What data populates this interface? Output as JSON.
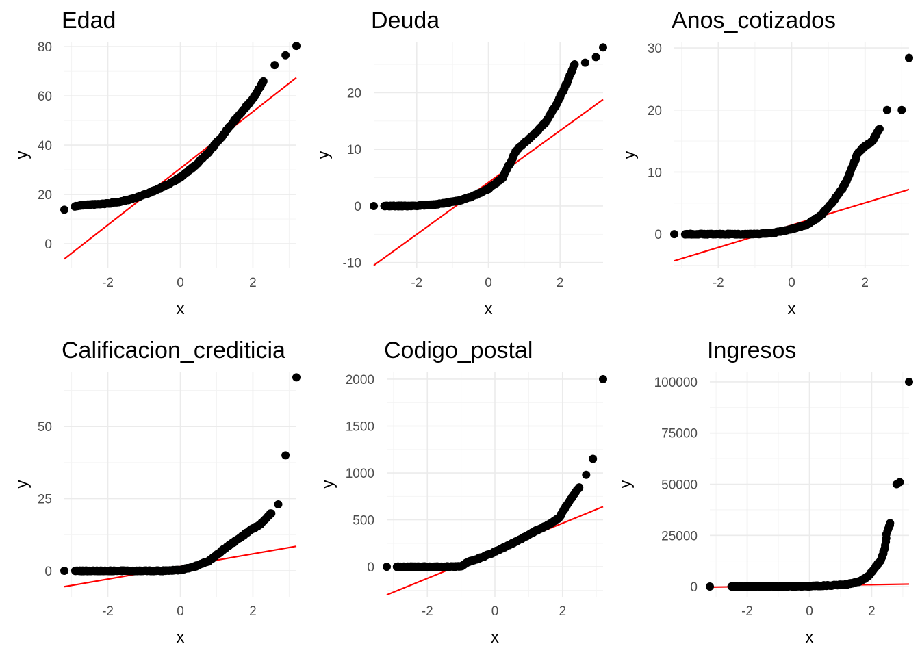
{
  "chart_data": [
    {
      "type": "scatter",
      "title": "Edad",
      "xlabel": "x",
      "ylabel": "y",
      "xlim": [
        -3.2,
        3.2
      ],
      "ylim": [
        -10,
        82
      ],
      "xticks": [
        -2,
        0,
        2
      ],
      "yticks": [
        0,
        20,
        40,
        60,
        80
      ],
      "ytick_labels": [
        "0",
        "20",
        "40",
        "60",
        "80"
      ],
      "grid": true,
      "curve": [
        [
          -3.2,
          13.8
        ],
        [
          -2.9,
          15.2
        ],
        [
          -2.6,
          15.8
        ],
        [
          -2.3,
          16
        ],
        [
          -2,
          16.3
        ],
        [
          -1.6,
          17.2
        ],
        [
          -1.2,
          18.8
        ],
        [
          -0.8,
          21
        ],
        [
          -0.4,
          23.6
        ],
        [
          0,
          27
        ],
        [
          0.4,
          31.6
        ],
        [
          0.8,
          37.5
        ],
        [
          1.2,
          44.5
        ],
        [
          1.6,
          52
        ],
        [
          2,
          58.8
        ],
        [
          2.3,
          66
        ],
        [
          2.6,
          72.5
        ],
        [
          2.9,
          76.5
        ],
        [
          3.2,
          80.3
        ]
      ],
      "line": {
        "color": "#ff0000",
        "points": [
          [
            -3.2,
            -6.2
          ],
          [
            3.2,
            67.4
          ]
        ]
      }
    },
    {
      "type": "scatter",
      "title": "Deuda",
      "xlabel": "x",
      "ylabel": "y",
      "xlim": [
        -3.2,
        3.2
      ],
      "ylim": [
        -11,
        29
      ],
      "xticks": [
        -2,
        0,
        2
      ],
      "yticks": [
        -10,
        0,
        10,
        20
      ],
      "ytick_labels": [
        "-10",
        "0",
        "10",
        "20"
      ],
      "grid": true,
      "curve": [
        [
          -3.2,
          0
        ],
        [
          -2.9,
          0
        ],
        [
          -2.6,
          0
        ],
        [
          -2.3,
          0
        ],
        [
          -2,
          0.05
        ],
        [
          -1.6,
          0.2
        ],
        [
          -1.2,
          0.5
        ],
        [
          -0.8,
          1
        ],
        [
          -0.4,
          1.8
        ],
        [
          0,
          3
        ],
        [
          0.4,
          5
        ],
        [
          0.6,
          7.5
        ],
        [
          0.8,
          10
        ],
        [
          1.2,
          12.2
        ],
        [
          1.6,
          14.8
        ],
        [
          1.9,
          18
        ],
        [
          2.2,
          21.8
        ],
        [
          2.4,
          25
        ],
        [
          2.7,
          25.3
        ],
        [
          3,
          26.3
        ],
        [
          3.2,
          28
        ]
      ],
      "line": {
        "color": "#ff0000",
        "points": [
          [
            -3.2,
            -10.5
          ],
          [
            3.2,
            18.8
          ]
        ]
      }
    },
    {
      "type": "scatter",
      "title": "Anos_cotizados",
      "xlabel": "x",
      "ylabel": "y",
      "xlim": [
        -3.2,
        3.2
      ],
      "ylim": [
        -5.5,
        31
      ],
      "xticks": [
        -2,
        0,
        2
      ],
      "yticks": [
        0,
        10,
        20,
        30
      ],
      "ytick_labels": [
        "0",
        "10",
        "20",
        "30"
      ],
      "grid": true,
      "curve": [
        [
          -3.2,
          0
        ],
        [
          -2.9,
          0
        ],
        [
          -2.5,
          0
        ],
        [
          -2,
          0
        ],
        [
          -1.5,
          0
        ],
        [
          -1,
          0
        ],
        [
          -0.5,
          0.2
        ],
        [
          0,
          0.8
        ],
        [
          0.4,
          1.5
        ],
        [
          0.8,
          3
        ],
        [
          1.1,
          5
        ],
        [
          1.4,
          7.5
        ],
        [
          1.6,
          10
        ],
        [
          1.8,
          13
        ],
        [
          2,
          14.2
        ],
        [
          2.2,
          15
        ],
        [
          2.4,
          17
        ],
        [
          2.6,
          20
        ],
        [
          3,
          20
        ],
        [
          3.2,
          28.4
        ]
      ],
      "line": {
        "color": "#ff0000",
        "points": [
          [
            -3.2,
            -4.3
          ],
          [
            3.2,
            7.2
          ]
        ]
      }
    },
    {
      "type": "scatter",
      "title": "Calificacion_crediticia",
      "xlabel": "x",
      "ylabel": "y",
      "xlim": [
        -3.2,
        3.2
      ],
      "ylim": [
        -9,
        69
      ],
      "xticks": [
        -2,
        0,
        2
      ],
      "yticks": [
        0,
        25,
        50
      ],
      "ytick_labels": [
        "0",
        "25",
        "50"
      ],
      "grid": true,
      "curve": [
        [
          -3.2,
          0
        ],
        [
          -2.9,
          0
        ],
        [
          -2.5,
          0
        ],
        [
          -2,
          0
        ],
        [
          -1.5,
          0
        ],
        [
          -1,
          0
        ],
        [
          -0.5,
          0
        ],
        [
          0,
          0.3
        ],
        [
          0.4,
          1.5
        ],
        [
          0.8,
          3.5
        ],
        [
          1.2,
          7.5
        ],
        [
          1.6,
          11
        ],
        [
          1.9,
          13.8
        ],
        [
          2.2,
          16
        ],
        [
          2.5,
          20
        ],
        [
          2.7,
          23
        ],
        [
          2.9,
          40
        ],
        [
          3.2,
          67
        ]
      ],
      "line": {
        "color": "#ff0000",
        "points": [
          [
            -3.2,
            -5.5
          ],
          [
            3.2,
            8.5
          ]
        ]
      }
    },
    {
      "type": "scatter",
      "title": "Codigo_postal",
      "xlabel": "x",
      "ylabel": "y",
      "xlim": [
        -3.2,
        3.2
      ],
      "ylim": [
        -320,
        2080
      ],
      "xticks": [
        -2,
        0,
        2
      ],
      "yticks": [
        0,
        500,
        1000,
        1500,
        2000
      ],
      "ytick_labels": [
        "0",
        "500",
        "1000",
        "1500",
        "2000"
      ],
      "grid": true,
      "curve": [
        [
          -3.2,
          0
        ],
        [
          -2.9,
          0
        ],
        [
          -2.5,
          0
        ],
        [
          -2,
          0
        ],
        [
          -1.5,
          0
        ],
        [
          -1,
          5
        ],
        [
          -0.8,
          50
        ],
        [
          -0.4,
          100
        ],
        [
          0,
          160
        ],
        [
          0.4,
          230
        ],
        [
          0.8,
          300
        ],
        [
          1.2,
          380
        ],
        [
          1.6,
          450
        ],
        [
          1.9,
          520
        ],
        [
          2.2,
          700
        ],
        [
          2.5,
          850
        ],
        [
          2.7,
          980
        ],
        [
          2.9,
          1150
        ],
        [
          3.2,
          2000
        ]
      ],
      "line": {
        "color": "#ff0000",
        "points": [
          [
            -3.2,
            -300
          ],
          [
            3.2,
            640
          ]
        ]
      }
    },
    {
      "type": "scatter",
      "title": "Ingresos",
      "xlabel": "x",
      "ylabel": "y",
      "xlim": [
        -3.2,
        3.2
      ],
      "ylim": [
        -5000,
        105000
      ],
      "xticks": [
        -2,
        0,
        2
      ],
      "yticks": [
        0,
        25000,
        50000,
        75000,
        100000
      ],
      "ytick_labels": [
        "0",
        "25000",
        "50000",
        "75000",
        "100000"
      ],
      "grid": true,
      "curve": [
        [
          -3.2,
          0
        ],
        [
          -2.5,
          0
        ],
        [
          -2,
          0
        ],
        [
          -1,
          0
        ],
        [
          0,
          200
        ],
        [
          0.8,
          600
        ],
        [
          1.2,
          1000
        ],
        [
          1.6,
          2500
        ],
        [
          1.9,
          5000
        ],
        [
          2.1,
          9000
        ],
        [
          2.3,
          13000
        ],
        [
          2.4,
          18000
        ],
        [
          2.5,
          27000
        ],
        [
          2.6,
          31000
        ],
        [
          2.8,
          50000
        ],
        [
          2.9,
          51000
        ],
        [
          3.2,
          100000
        ]
      ],
      "line": {
        "color": "#ff0000",
        "points": [
          [
            -3.2,
            -300
          ],
          [
            3.2,
            1200
          ]
        ]
      }
    }
  ]
}
